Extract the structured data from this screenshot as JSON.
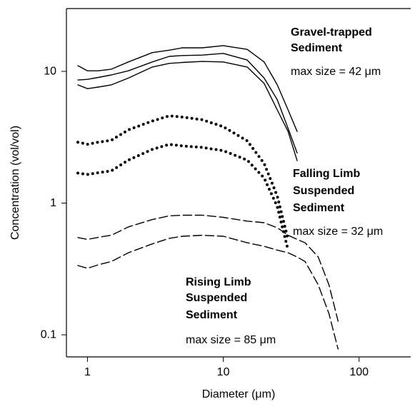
{
  "chart_data": {
    "type": "line",
    "x_label": "Diameter (μm)",
    "y_label": "Concentration (vol/vol)",
    "x": [
      0.85,
      1,
      1.2,
      1.5,
      2,
      3,
      4,
      5,
      7,
      10,
      15,
      20,
      25,
      30,
      35,
      40,
      50,
      60,
      70
    ],
    "series": [
      {
        "color": "#000000",
        "style": "solid",
        "values": [
          11.05,
          10.1,
          10.1,
          10.4,
          11.8,
          13.9,
          14.5,
          15.1,
          15.1,
          15.7,
          14.7,
          11.8,
          7.9,
          5.1,
          3.5,
          null,
          null,
          null,
          null
        ]
      },
      {
        "color": "#000000",
        "style": "solid",
        "values": [
          8.6,
          8.7,
          9.0,
          9.4,
          10.1,
          11.8,
          13.0,
          13.2,
          13.3,
          13.7,
          12.2,
          8.9,
          6.1,
          3.7,
          2.4,
          null,
          null,
          null,
          null
        ]
      },
      {
        "color": "#000000",
        "style": "solid",
        "values": [
          7.9,
          7.4,
          7.6,
          7.9,
          8.9,
          10.8,
          11.5,
          11.7,
          11.9,
          11.8,
          10.8,
          8.1,
          5.1,
          3.5,
          2.1,
          null,
          null,
          null,
          null
        ]
      },
      {
        "color": "#000000",
        "style": "dotted",
        "values": [
          2.9,
          2.8,
          2.9,
          3.0,
          3.6,
          4.2,
          4.6,
          4.5,
          4.3,
          3.8,
          2.97,
          2.0,
          1.13,
          0.53,
          null,
          null,
          null,
          null,
          null
        ]
      },
      {
        "color": "#000000",
        "style": "dotted",
        "values": [
          1.69,
          1.65,
          1.7,
          1.76,
          2.12,
          2.56,
          2.79,
          2.72,
          2.65,
          2.5,
          2.12,
          1.55,
          0.94,
          0.44,
          null,
          null,
          null,
          null,
          null
        ]
      },
      {
        "color": "#000000",
        "style": "dashed",
        "values": [
          0.548,
          0.53,
          0.55,
          0.57,
          0.66,
          0.75,
          0.8,
          0.81,
          0.81,
          0.78,
          0.73,
          0.71,
          0.65,
          0.57,
          0.53,
          0.5,
          0.39,
          0.24,
          0.127
        ]
      },
      {
        "color": "#000000",
        "style": "dashed",
        "values": [
          0.336,
          0.32,
          0.34,
          0.36,
          0.42,
          0.49,
          0.54,
          0.56,
          0.57,
          0.56,
          0.5,
          0.47,
          0.44,
          0.42,
          0.39,
          0.36,
          0.24,
          0.145,
          0.078
        ]
      }
    ],
    "annotations": [
      "Gravel-trapped",
      "Sediment",
      "max size = 42 μm",
      "Falling Limb",
      "Suspended",
      "Sediment",
      "max size = 32 μm",
      "Rising Limb",
      "Suspended",
      "Sediment",
      "max size = 85 μm"
    ],
    "xlim": [
      0.7,
      240
    ],
    "ylim": [
      0.068,
      30
    ],
    "xticks": [
      1,
      10,
      100
    ],
    "yticks": [
      0.1,
      1,
      10
    ],
    "xscale": "log",
    "yscale": "log",
    "grid": false
  }
}
